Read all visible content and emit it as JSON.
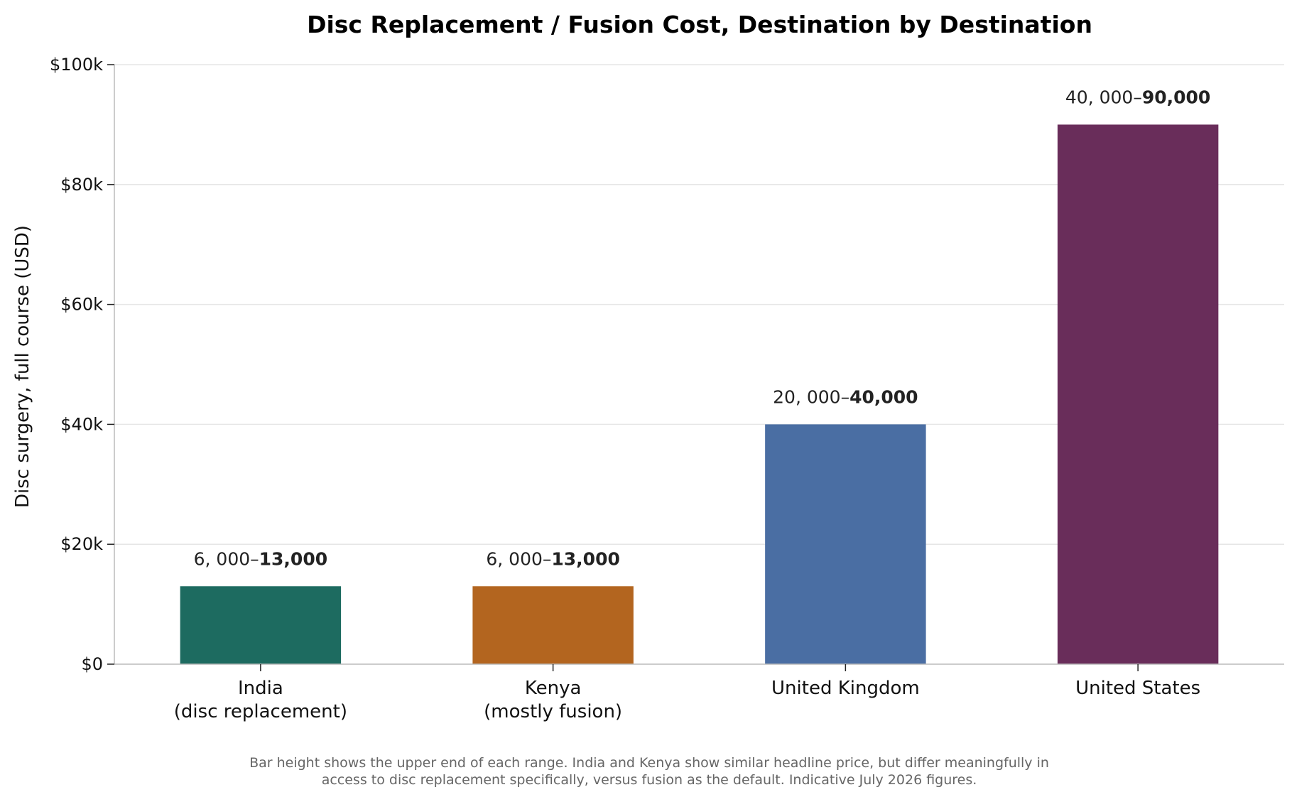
{
  "chart_data": {
    "type": "bar",
    "title": "Disc Replacement / Fusion Cost, Destination by Destination",
    "ylabel": "Disc surgery, full course (USD)",
    "xlabel": "",
    "ylim": [
      0,
      100000
    ],
    "yticks": [
      0,
      20000,
      40000,
      60000,
      80000,
      100000
    ],
    "ytick_labels": [
      "$0",
      "$20k",
      "$40k",
      "$60k",
      "$80k",
      "$100k"
    ],
    "grid": "horizontal",
    "categories": [
      [
        "India",
        "(disc replacement)"
      ],
      [
        "Kenya",
        "(mostly fusion)"
      ],
      [
        "United Kingdom"
      ],
      [
        "United States"
      ]
    ],
    "values": [
      13000,
      13000,
      40000,
      90000
    ],
    "ranges": [
      {
        "low_label": "6, 000–",
        "high_label": "13,000"
      },
      {
        "low_label": "6, 000–",
        "high_label": "13,000"
      },
      {
        "low_label": "20, 000–",
        "high_label": "40,000"
      },
      {
        "low_label": "40, 000–",
        "high_label": "90,000"
      }
    ],
    "colors": [
      "#1d6b60",
      "#b3651f",
      "#4a6ea3",
      "#692d5a"
    ],
    "footnote": [
      "Bar height shows the upper end of each range. India and Kenya show similar headline price, but differ meaningfully in",
      "access to disc replacement specifically, versus fusion as the default. Indicative July 2026 figures."
    ]
  }
}
